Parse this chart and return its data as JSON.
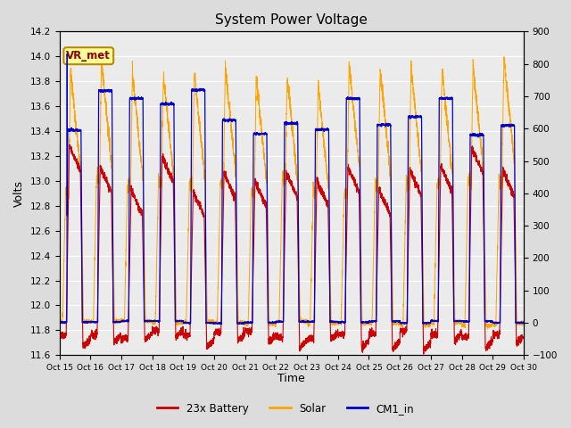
{
  "title": "System Power Voltage",
  "xlabel": "Time",
  "ylabel_left": "Volts",
  "ylim_left": [
    11.6,
    14.2
  ],
  "ylim_right": [
    -100,
    900
  ],
  "yticks_left": [
    11.6,
    11.8,
    12.0,
    12.2,
    12.4,
    12.6,
    12.8,
    13.0,
    13.2,
    13.4,
    13.6,
    13.8,
    14.0,
    14.2
  ],
  "yticks_right": [
    -100,
    0,
    100,
    200,
    300,
    400,
    500,
    600,
    700,
    800,
    900
  ],
  "xtick_labels": [
    "Oct 15",
    "Oct 16",
    "Oct 17",
    "Oct 18",
    "Oct 19",
    "Oct 20",
    "Oct 21",
    "Oct 22",
    "Oct 23",
    "Oct 24",
    "Oct 25",
    "Oct 26",
    "Oct 27",
    "Oct 28",
    "Oct 29",
    "Oct 30"
  ],
  "color_battery": "#CC0000",
  "color_solar": "#FFA500",
  "color_cm1": "#0000CC",
  "vr_met_label": "VR_met",
  "vr_met_box_color": "#FFFF99",
  "vr_met_border_color": "#BB8800",
  "legend_labels": [
    "23x Battery",
    "Solar",
    "CM1_in"
  ],
  "bg_color": "#DCDCDC",
  "plot_bg": "#EBEBEB"
}
